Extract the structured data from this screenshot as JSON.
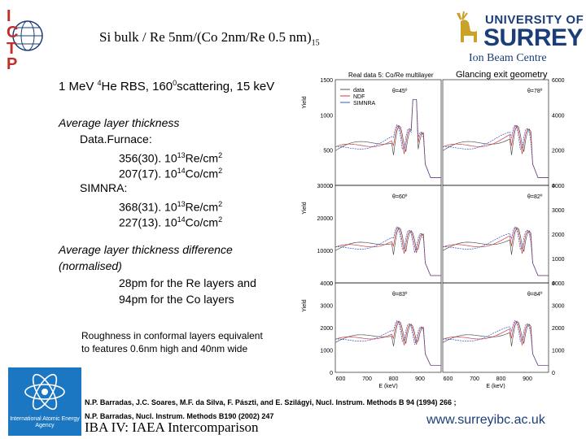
{
  "title": {
    "main": "Si bulk / Re 5nm/(Co 2nm/Re 0.5 nm)",
    "sub": "15"
  },
  "logos": {
    "ictp_letters": [
      "I",
      "C",
      "T",
      "P"
    ],
    "surrey_line1": "UNIVERSITY OF",
    "surrey_line2": "SURREY",
    "ion_beam": "Ion Beam Centre",
    "iaea_text": "International Atomic Energy Agency"
  },
  "glancing": "Glancing exit geometry",
  "rbs": {
    "pre": "1 MeV ",
    "sup1": "4",
    "mid": "He RBS, 160",
    "sup2": "0",
    "post": "scattering, 15 keV"
  },
  "avg": {
    "heading": "Average layer thickness",
    "datafurnace": "Data.Furnace:",
    "df_re": {
      "a": "356(30). 10",
      "sup": "13",
      "b": "Re/cm",
      "sup2": "2"
    },
    "df_co": {
      "a": "207(17). 10",
      "sup": "14",
      "b": "Co/cm",
      "sup2": "2"
    },
    "simnra": "SIMNRA:",
    "sim_re": {
      "a": "368(31). 10",
      "sup": "13",
      "b": "Re/cm",
      "sup2": "2"
    },
    "sim_co": {
      "a": "227(13). 10",
      "sup": "14",
      "b": "Co/cm",
      "sup2": "2"
    }
  },
  "diff": {
    "line1": "Average layer thickness difference",
    "line2": "(normalised)",
    "line3": "28pm for the Re layers and",
    "line4": "94pm  for the Co layers"
  },
  "rough": {
    "line1": "Roughness in conformal layers equivalent",
    "line2": "to features 0.6nm high and 40nm wide"
  },
  "refs": {
    "line1": "N.P. Barradas, J.C. Soares, M.F. da Silva, F. Pászti, and E. Szilágyi, Nucl. Instrum. Methods B 94 (1994) 266 ;",
    "line2": "N.P. Barradas, Nucl. Instrum. Methods B190 (2002) 247"
  },
  "footer": {
    "left": "IBA IV:  IAEA Intercomparison",
    "right": "www.surreyibc.ac.uk"
  },
  "figure": {
    "header": "Real data 5: Co/Re multilayer",
    "legend": [
      "data",
      "NDF",
      "SIMNRA"
    ],
    "panels": [
      {
        "angle": "θ=45º",
        "yticks": [
          "1500",
          "1000",
          "500",
          "0"
        ]
      },
      {
        "angle": "θ=78º",
        "yticks": [
          "6000",
          "4000",
          "2000",
          "0"
        ]
      },
      {
        "angle": "θ=60º",
        "yticks": [
          "30000",
          "20000",
          "10000",
          "0"
        ]
      },
      {
        "angle": "θ=82º",
        "yticks": [
          "4000",
          "3000",
          "2000",
          "1000",
          "0"
        ]
      },
      {
        "angle": "θ=83º",
        "yticks": [
          "4000",
          "3000",
          "2000",
          "1000",
          "0"
        ]
      },
      {
        "angle": "θ=84º",
        "yticks": [
          "4000",
          "3000",
          "2000",
          "1000",
          "0"
        ]
      }
    ],
    "xticks": [
      "600",
      "700",
      "800",
      "900"
    ],
    "xlabel": "E (keV)",
    "ylabel": "Yield"
  },
  "colors": {
    "blue": "#1b3d7a",
    "iaea": "#1c77c3",
    "ictp_red": "#c0302a",
    "data": "#555555",
    "ndf": "#d23b3b",
    "simnra": "#3355cc"
  }
}
